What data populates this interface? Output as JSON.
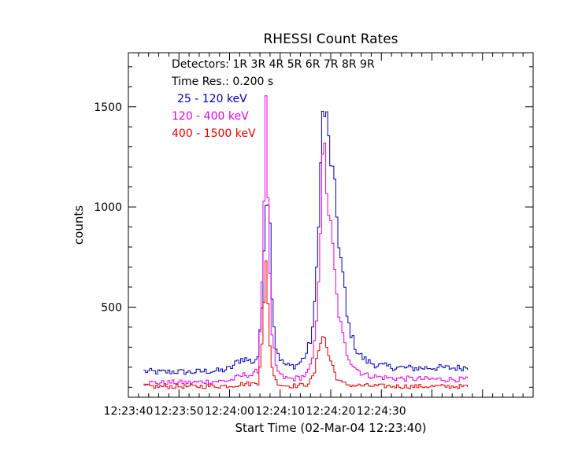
{
  "chart_data": {
    "type": "line",
    "title": "RHESSI Count Rates",
    "xlabel": "Start Time (02-Mar-04 12:23:40)",
    "ylabel": "counts",
    "xlim": [
      0,
      80
    ],
    "ylim": [
      50,
      1770
    ],
    "x_tick_values": [
      0,
      10,
      20,
      30,
      40,
      50
    ],
    "x_tick_labels": [
      "12:23:40",
      "12:23:50",
      "12:24:00",
      "12:24:10",
      "12:24:20",
      "12:24:30"
    ],
    "y_ticks": [
      500,
      1000,
      1500
    ],
    "annotations": [
      "Detectors:  1R 3R 4R 5R 6R 7R 8R 9R",
      "Time Res.: 0.200 s"
    ],
    "series": [
      {
        "name": "25 - 120 keV",
        "color": "#0000b4",
        "points": [
          [
            3,
            180
          ],
          [
            6,
            175
          ],
          [
            9,
            178
          ],
          [
            12,
            175
          ],
          [
            15,
            180
          ],
          [
            18,
            182
          ],
          [
            20,
            195
          ],
          [
            21.5,
            230
          ],
          [
            22.5,
            245
          ],
          [
            23.5,
            235
          ],
          [
            24.5,
            225
          ],
          [
            25.5,
            260
          ],
          [
            26.2,
            500
          ],
          [
            26.8,
            1000
          ],
          [
            27.3,
            1100
          ],
          [
            27.8,
            900
          ],
          [
            28.3,
            500
          ],
          [
            29,
            300
          ],
          [
            30,
            230
          ],
          [
            31,
            210
          ],
          [
            32,
            205
          ],
          [
            33,
            210
          ],
          [
            34,
            230
          ],
          [
            35,
            270
          ],
          [
            36,
            350
          ],
          [
            36.8,
            550
          ],
          [
            37.3,
            900
          ],
          [
            37.8,
            1200
          ],
          [
            38.2,
            1450
          ],
          [
            38.6,
            1470
          ],
          [
            39,
            1420
          ],
          [
            39.5,
            1300
          ],
          [
            40,
            1200
          ],
          [
            40.5,
            1100
          ],
          [
            41,
            950
          ],
          [
            41.5,
            800
          ],
          [
            42,
            700
          ],
          [
            42.5,
            600
          ],
          [
            43,
            450
          ],
          [
            44,
            350
          ],
          [
            45,
            280
          ],
          [
            46,
            250
          ],
          [
            47,
            230
          ],
          [
            49,
            210
          ],
          [
            52,
            200
          ],
          [
            56,
            195
          ],
          [
            60,
            198
          ],
          [
            64,
            196
          ],
          [
            67,
            200
          ]
        ]
      },
      {
        "name": "120 - 400 keV",
        "color": "#e600e6",
        "points": [
          [
            3,
            125
          ],
          [
            6,
            122
          ],
          [
            9,
            125
          ],
          [
            12,
            123
          ],
          [
            15,
            128
          ],
          [
            18,
            130
          ],
          [
            20,
            135
          ],
          [
            21.5,
            150
          ],
          [
            23,
            165
          ],
          [
            24.5,
            160
          ],
          [
            25.5,
            190
          ],
          [
            26.3,
            700
          ],
          [
            26.7,
            1200
          ],
          [
            27,
            1480
          ],
          [
            27.3,
            1200
          ],
          [
            27.7,
            700
          ],
          [
            28.2,
            350
          ],
          [
            29,
            200
          ],
          [
            30,
            155
          ],
          [
            31,
            145
          ],
          [
            32,
            142
          ],
          [
            33,
            145
          ],
          [
            34,
            150
          ],
          [
            35,
            165
          ],
          [
            36,
            210
          ],
          [
            36.8,
            350
          ],
          [
            37.3,
            600
          ],
          [
            37.8,
            900
          ],
          [
            38.2,
            1200
          ],
          [
            38.6,
            1270
          ],
          [
            39,
            1100
          ],
          [
            39.5,
            950
          ],
          [
            40,
            850
          ],
          [
            40.5,
            700
          ],
          [
            41,
            550
          ],
          [
            41.5,
            450
          ],
          [
            42,
            380
          ],
          [
            42.5,
            320
          ],
          [
            43,
            270
          ],
          [
            44,
            220
          ],
          [
            45,
            190
          ],
          [
            46,
            170
          ],
          [
            47,
            160
          ],
          [
            49,
            152
          ],
          [
            52,
            145
          ],
          [
            56,
            142
          ],
          [
            60,
            140
          ],
          [
            64,
            140
          ],
          [
            67,
            138
          ]
        ]
      },
      {
        "name": "400 - 1500 keV",
        "color": "#e60000",
        "points": [
          [
            3,
            105
          ],
          [
            6,
            103
          ],
          [
            9,
            104
          ],
          [
            12,
            103
          ],
          [
            15,
            105
          ],
          [
            18,
            106
          ],
          [
            20,
            108
          ],
          [
            21.5,
            113
          ],
          [
            23,
            118
          ],
          [
            24.5,
            117
          ],
          [
            25.5,
            125
          ],
          [
            26.3,
            360
          ],
          [
            26.7,
            560
          ],
          [
            27,
            700
          ],
          [
            27.3,
            560
          ],
          [
            27.7,
            350
          ],
          [
            28.2,
            200
          ],
          [
            29,
            130
          ],
          [
            30,
            112
          ],
          [
            31,
            108
          ],
          [
            32,
            107
          ],
          [
            33,
            108
          ],
          [
            34,
            110
          ],
          [
            35,
            115
          ],
          [
            36,
            135
          ],
          [
            36.8,
            190
          ],
          [
            37.3,
            280
          ],
          [
            37.8,
            340
          ],
          [
            38.2,
            360
          ],
          [
            38.6,
            340
          ],
          [
            39,
            300
          ],
          [
            39.5,
            250
          ],
          [
            40,
            220
          ],
          [
            40.5,
            180
          ],
          [
            41,
            150
          ],
          [
            41.5,
            130
          ],
          [
            42,
            120
          ],
          [
            43,
            115
          ],
          [
            44,
            110
          ],
          [
            46,
            108
          ],
          [
            49,
            106
          ],
          [
            52,
            105
          ],
          [
            56,
            104
          ],
          [
            60,
            104
          ],
          [
            64,
            104
          ],
          [
            67,
            103
          ]
        ]
      }
    ]
  }
}
